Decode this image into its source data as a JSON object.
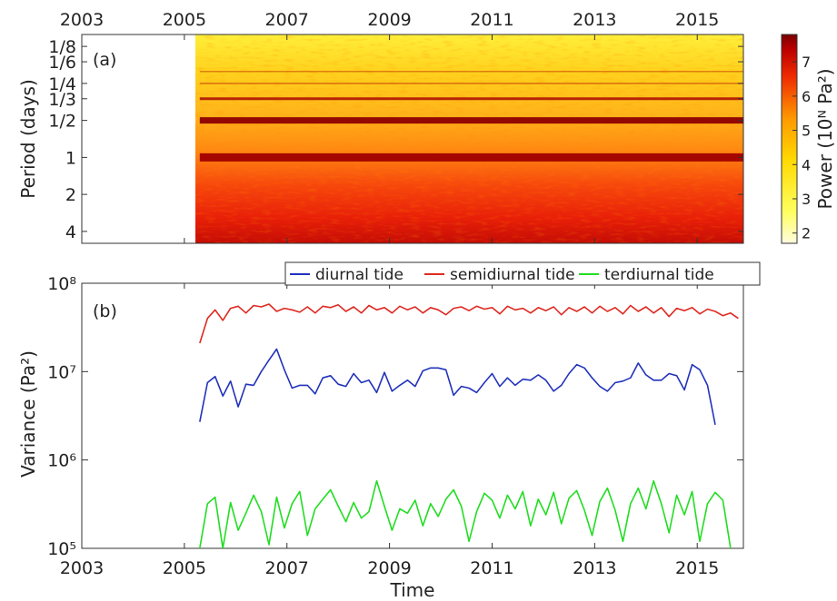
{
  "figure": {
    "panel_a_label": "(a)",
    "panel_b_label": "(b)",
    "panel_a_ylabel": "Period (days)",
    "panel_b_ylabel": "Variance (Pa²)",
    "panel_b_xlabel": "Time",
    "colorbar_label": "Power (10ᴺ Pa²)"
  },
  "colors": {
    "diurnal": "#2233bb",
    "semidiurnal": "#dd2a22",
    "terdiurnal": "#22dd22",
    "heatmap_low": "#fffbe0",
    "heatmap_high": "#7a0000"
  },
  "chart_data": [
    {
      "type": "heatmap",
      "panel": "a",
      "xlim": [
        2003,
        2015.9
      ],
      "data_start": 2005.3,
      "x_ticks": [
        "2003",
        "2005",
        "2007",
        "2009",
        "2011",
        "2013",
        "2015"
      ],
      "y_ticks": [
        "1/8",
        "1/6",
        "1/4",
        "1/3",
        "1/2",
        "1",
        "2",
        "4"
      ],
      "y_scale": "log (period, days)",
      "y_tick_values": [
        0.125,
        0.1667,
        0.25,
        0.3333,
        0.5,
        1,
        2,
        4
      ],
      "ylim": [
        0.1,
        5
      ],
      "tidal_bands_days": [
        1,
        0.5,
        0.3333,
        0.25,
        0.2
      ],
      "colorbar": {
        "ticks": [
          "2",
          "3",
          "4",
          "5",
          "6",
          "7"
        ],
        "range": [
          1.7,
          7.8
        ]
      }
    },
    {
      "type": "line",
      "panel": "b",
      "y_scale": "log",
      "ylim": [
        100000,
        100000000
      ],
      "xlim": [
        2003,
        2015.9
      ],
      "x_ticks": [
        "2003",
        "2005",
        "2007",
        "2009",
        "2011",
        "2013",
        "2015"
      ],
      "y_ticks": [
        "10⁵",
        "10⁶",
        "10⁷",
        "10⁸"
      ],
      "legend_position": "top",
      "series": [
        {
          "name": "diurnal tide",
          "x": [
            2005.3,
            2005.45,
            2005.6,
            2005.75,
            2005.9,
            2006.05,
            2006.2,
            2006.35,
            2006.5,
            2006.65,
            2006.8,
            2006.95,
            2007.1,
            2007.25,
            2007.4,
            2007.55,
            2007.7,
            2007.85,
            2008.0,
            2008.15,
            2008.3,
            2008.45,
            2008.6,
            2008.75,
            2008.9,
            2009.05,
            2009.2,
            2009.35,
            2009.5,
            2009.65,
            2009.8,
            2009.95,
            2010.1,
            2010.25,
            2010.4,
            2010.55,
            2010.7,
            2010.85,
            2011.0,
            2011.15,
            2011.3,
            2011.45,
            2011.6,
            2011.75,
            2011.9,
            2012.05,
            2012.2,
            2012.35,
            2012.5,
            2012.65,
            2012.8,
            2012.95,
            2013.1,
            2013.25,
            2013.4,
            2013.55,
            2013.7,
            2013.85,
            2014.0,
            2014.15,
            2014.3,
            2014.45,
            2014.6,
            2014.75,
            2014.9,
            2015.05,
            2015.2,
            2015.35,
            2015.5,
            2015.65,
            2015.8
          ],
          "values": [
            2700000.0,
            7500000.0,
            8800000.0,
            5300000.0,
            7800000.0,
            4000000.0,
            7200000.0,
            7000000.0,
            10000000.0,
            13500000.0,
            18000000.0,
            10500000.0,
            6500000.0,
            7000000.0,
            7000000.0,
            5600000.0,
            8500000.0,
            9000000.0,
            7200000.0,
            6800000.0,
            9500000.0,
            7500000.0,
            8000000.0,
            5800000.0,
            9800000.0,
            6000000.0,
            7000000.0,
            8000000.0,
            6800000.0,
            10200000.0,
            11000000.0,
            11000000.0,
            10500000.0,
            5400000.0,
            6800000.0,
            6500000.0,
            5800000.0,
            7500000.0,
            9500000.0,
            6800000.0,
            8500000.0,
            7000000.0,
            8200000.0,
            8000000.0,
            9200000.0,
            8000000.0,
            6000000.0,
            7000000.0,
            9500000.0,
            12000000.0,
            11000000.0,
            8500000.0,
            6800000.0,
            6000000.0,
            7500000.0,
            7800000.0,
            8500000.0,
            12500000.0,
            9200000.0,
            8000000.0,
            8000000.0,
            9500000.0,
            9000000.0,
            6200000.0,
            12000000.0,
            10500000.0,
            7000000.0,
            2500000.0,
            null,
            null,
            null
          ]
        },
        {
          "name": "semidiurnal tide",
          "x": [
            2005.3,
            2005.45,
            2005.6,
            2005.75,
            2005.9,
            2006.05,
            2006.2,
            2006.35,
            2006.5,
            2006.65,
            2006.8,
            2006.95,
            2007.1,
            2007.25,
            2007.4,
            2007.55,
            2007.7,
            2007.85,
            2008.0,
            2008.15,
            2008.3,
            2008.45,
            2008.6,
            2008.75,
            2008.9,
            2009.05,
            2009.2,
            2009.35,
            2009.5,
            2009.65,
            2009.8,
            2009.95,
            2010.1,
            2010.25,
            2010.4,
            2010.55,
            2010.7,
            2010.85,
            2011.0,
            2011.15,
            2011.3,
            2011.45,
            2011.6,
            2011.75,
            2011.9,
            2012.05,
            2012.2,
            2012.35,
            2012.5,
            2012.65,
            2012.8,
            2012.95,
            2013.1,
            2013.25,
            2013.4,
            2013.55,
            2013.7,
            2013.85,
            2014.0,
            2014.15,
            2014.3,
            2014.45,
            2014.6,
            2014.75,
            2014.9,
            2015.05,
            2015.2,
            2015.35,
            2015.5,
            2015.65,
            2015.8
          ],
          "values": [
            21000000.0,
            40000000.0,
            50000000.0,
            38000000.0,
            52000000.0,
            55000000.0,
            46000000.0,
            56000000.0,
            54000000.0,
            58000000.0,
            48000000.0,
            52000000.0,
            50000000.0,
            47000000.0,
            54000000.0,
            46000000.0,
            55000000.0,
            53000000.0,
            57000000.0,
            48000000.0,
            54000000.0,
            46000000.0,
            56000000.0,
            50000000.0,
            53000000.0,
            46000000.0,
            55000000.0,
            50000000.0,
            54000000.0,
            46000000.0,
            53000000.0,
            50000000.0,
            44000000.0,
            52000000.0,
            54000000.0,
            49000000.0,
            55000000.0,
            51000000.0,
            53000000.0,
            45000000.0,
            55000000.0,
            50000000.0,
            52000000.0,
            46000000.0,
            53000000.0,
            49000000.0,
            54000000.0,
            44000000.0,
            53000000.0,
            48000000.0,
            54000000.0,
            46000000.0,
            55000000.0,
            48000000.0,
            53000000.0,
            45000000.0,
            56000000.0,
            48000000.0,
            54000000.0,
            46000000.0,
            53000000.0,
            42000000.0,
            52000000.0,
            49000000.0,
            53000000.0,
            45000000.0,
            51000000.0,
            48000000.0,
            43000000.0,
            46000000.0,
            40000000.0
          ]
        },
        {
          "name": "terdiurnal tide",
          "x": [
            2005.3,
            2005.45,
            2005.6,
            2005.75,
            2005.9,
            2006.05,
            2006.2,
            2006.35,
            2006.5,
            2006.65,
            2006.8,
            2006.95,
            2007.1,
            2007.25,
            2007.4,
            2007.55,
            2007.7,
            2007.85,
            2008.0,
            2008.15,
            2008.3,
            2008.45,
            2008.6,
            2008.75,
            2008.9,
            2009.05,
            2009.2,
            2009.35,
            2009.5,
            2009.65,
            2009.8,
            2009.95,
            2010.1,
            2010.25,
            2010.4,
            2010.55,
            2010.7,
            2010.85,
            2011.0,
            2011.15,
            2011.3,
            2011.45,
            2011.6,
            2011.75,
            2011.9,
            2012.05,
            2012.2,
            2012.35,
            2012.5,
            2012.65,
            2012.8,
            2012.95,
            2013.1,
            2013.25,
            2013.4,
            2013.55,
            2013.7,
            2013.85,
            2014.0,
            2014.15,
            2014.3,
            2014.45,
            2014.6,
            2014.75,
            2014.9,
            2015.05,
            2015.2,
            2015.35,
            2015.5,
            2015.65,
            2015.8
          ],
          "values": [
            100000.0,
            320000.0,
            380000.0,
            100000.0,
            330000.0,
            160000.0,
            250000.0,
            400000.0,
            260000.0,
            110000.0,
            380000.0,
            170000.0,
            320000.0,
            440000.0,
            140000.0,
            280000.0,
            360000.0,
            460000.0,
            300000.0,
            200000.0,
            330000.0,
            220000.0,
            260000.0,
            580000.0,
            300000.0,
            160000.0,
            280000.0,
            250000.0,
            350000.0,
            180000.0,
            320000.0,
            230000.0,
            360000.0,
            460000.0,
            300000.0,
            120000.0,
            260000.0,
            420000.0,
            350000.0,
            220000.0,
            400000.0,
            280000.0,
            440000.0,
            180000.0,
            360000.0,
            240000.0,
            430000.0,
            190000.0,
            370000.0,
            450000.0,
            270000.0,
            140000.0,
            340000.0,
            480000.0,
            270000.0,
            120000.0,
            320000.0,
            480000.0,
            280000.0,
            580000.0,
            320000.0,
            150000.0,
            400000.0,
            240000.0,
            440000.0,
            120000.0,
            320000.0,
            430000.0,
            350000.0,
            100000.0,
            null
          ]
        }
      ]
    }
  ]
}
